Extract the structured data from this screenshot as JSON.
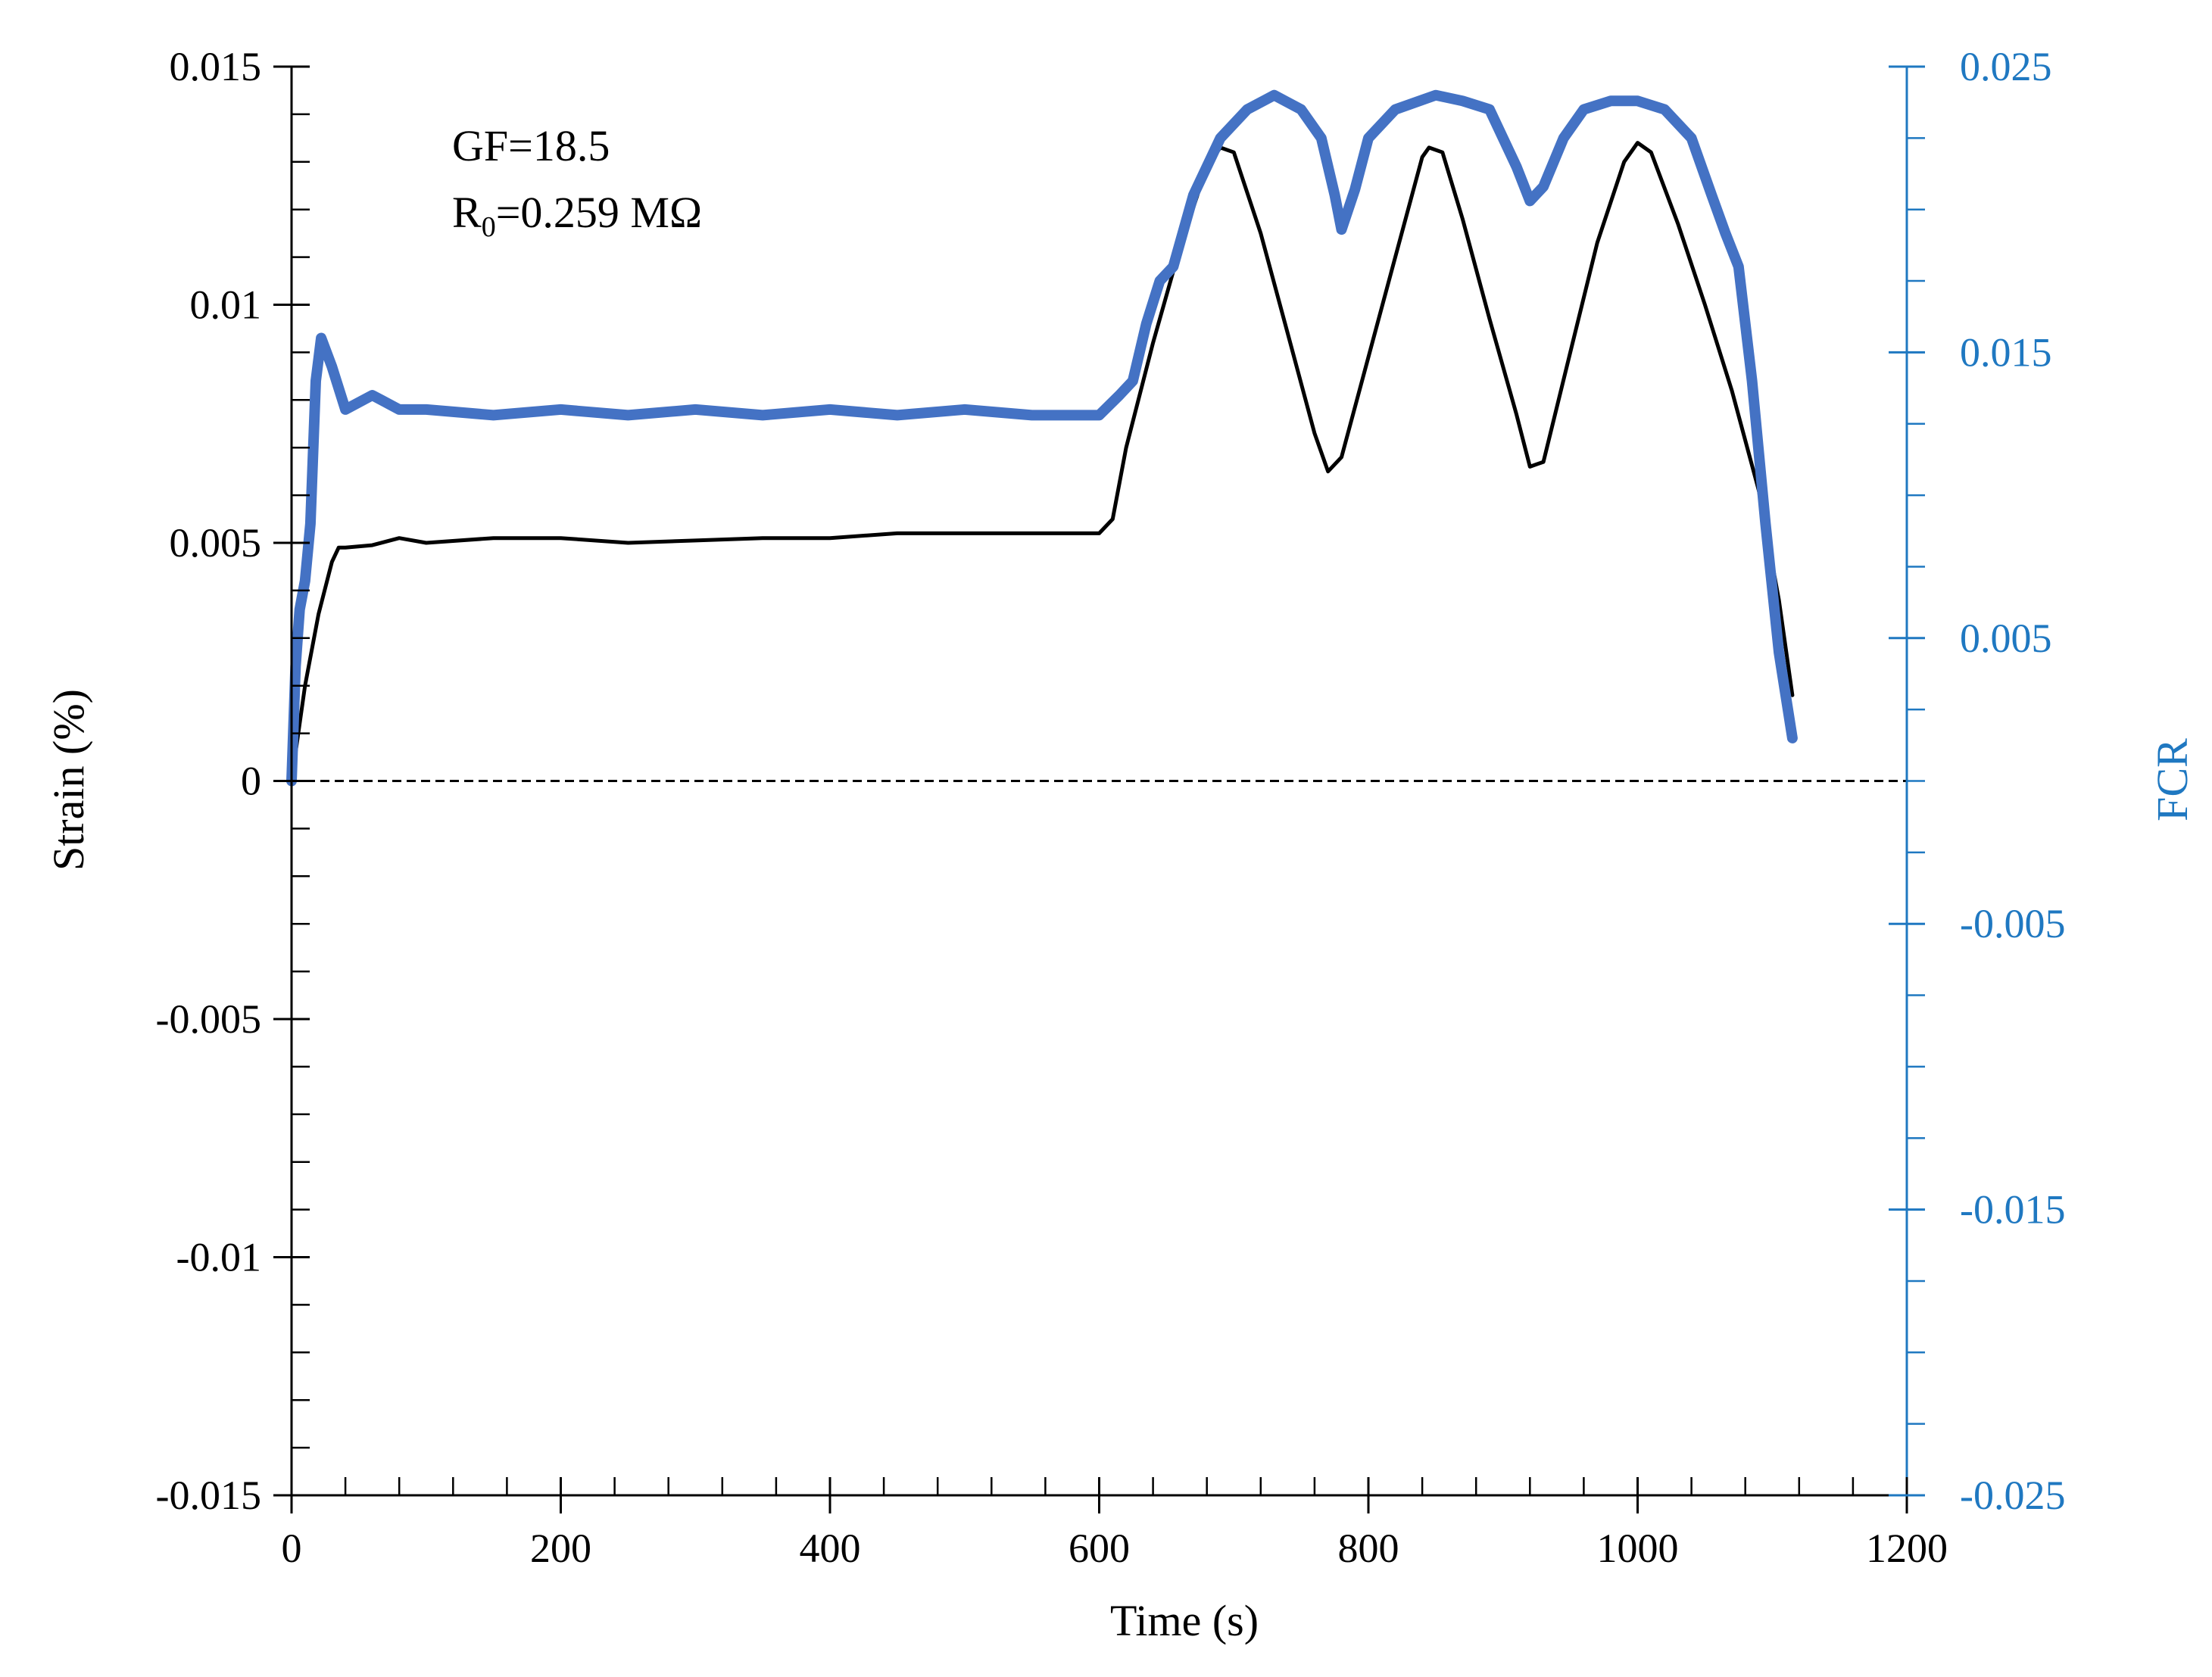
{
  "chart_data": {
    "type": "line",
    "xlabel": "Time (s)",
    "ylabel": "Strain (%)",
    "y2label": "FCR",
    "xlim": [
      0,
      1200
    ],
    "ylim": [
      -0.015,
      0.015
    ],
    "y2lim": [
      0.025,
      -0.025
    ],
    "x_ticks": [
      "0",
      "200",
      "400",
      "600",
      "800",
      "1000",
      "1200"
    ],
    "y_ticks": [
      "0.015",
      "0.01",
      "0.005",
      "0",
      "-0.005",
      "-0.01",
      "-0.015"
    ],
    "y2_ticks": [
      "-0.025",
      "-0.015",
      "-0.005",
      "0.005",
      "0.015",
      "0.025"
    ],
    "annotations": [
      {
        "text": "GF=18.5"
      },
      {
        "prefix": "R",
        "subscript": "0",
        "suffix": "=0.259 MΩ"
      }
    ],
    "colors": {
      "strain": "#000000",
      "fcr": "#4472c4",
      "right_axis": "#1f78c1",
      "zero_line": "#000000"
    },
    "reference_line": {
      "y": 0,
      "style": "dashed"
    },
    "series": [
      {
        "axis": "left",
        "color": "#000000",
        "x": [
          0,
          10,
          20,
          30,
          35,
          40,
          60,
          80,
          100,
          150,
          200,
          250,
          300,
          350,
          400,
          450,
          500,
          550,
          600,
          610,
          620,
          640,
          660,
          680,
          690,
          700,
          720,
          740,
          760,
          770,
          780,
          800,
          820,
          840,
          845,
          855,
          870,
          890,
          910,
          920,
          930,
          950,
          970,
          990,
          1000,
          1010,
          1030,
          1050,
          1070,
          1090,
          1105,
          1115
        ],
        "y": [
          0,
          0.002,
          0.0035,
          0.0046,
          0.0049,
          0.0049,
          0.00495,
          0.0051,
          0.005,
          0.0051,
          0.0051,
          0.005,
          0.00505,
          0.0051,
          0.0051,
          0.0052,
          0.0052,
          0.0052,
          0.0052,
          0.0055,
          0.007,
          0.0092,
          0.0112,
          0.0129,
          0.0133,
          0.0132,
          0.0115,
          0.0094,
          0.0073,
          0.0065,
          0.0068,
          0.0089,
          0.011,
          0.0131,
          0.0133,
          0.0132,
          0.0118,
          0.0097,
          0.0077,
          0.0066,
          0.0067,
          0.009,
          0.0113,
          0.013,
          0.0134,
          0.0132,
          0.0117,
          0.01,
          0.0082,
          0.0061,
          0.0038,
          0.0018
        ]
      },
      {
        "axis": "right",
        "color": "#4472c4",
        "x": [
          0,
          3,
          6,
          10,
          14,
          18,
          22,
          30,
          40,
          60,
          80,
          100,
          150,
          200,
          250,
          300,
          350,
          400,
          450,
          500,
          550,
          600,
          615,
          625,
          635,
          645,
          655,
          670,
          690,
          710,
          730,
          750,
          765,
          775,
          780,
          790,
          800,
          820,
          850,
          870,
          890,
          910,
          920,
          930,
          945,
          960,
          980,
          1000,
          1020,
          1040,
          1055,
          1065,
          1075,
          1085,
          1095,
          1105,
          1115
        ],
        "y": [
          0.0,
          0.004,
          0.006,
          0.007,
          0.009,
          0.014,
          0.0155,
          0.0145,
          0.013,
          0.0135,
          0.013,
          0.013,
          0.0128,
          0.013,
          0.0128,
          0.013,
          0.0128,
          0.013,
          0.0128,
          0.013,
          0.0128,
          0.0128,
          0.0135,
          0.014,
          0.016,
          0.0175,
          0.018,
          0.0205,
          0.0225,
          0.0235,
          0.024,
          0.0235,
          0.0225,
          0.0205,
          0.0193,
          0.0207,
          0.0225,
          0.0235,
          0.024,
          0.0238,
          0.0235,
          0.0215,
          0.0203,
          0.0208,
          0.0225,
          0.0235,
          0.0238,
          0.0238,
          0.0235,
          0.0225,
          0.0205,
          0.0192,
          0.018,
          0.014,
          0.009,
          0.0045,
          0.0015
        ]
      }
    ]
  }
}
